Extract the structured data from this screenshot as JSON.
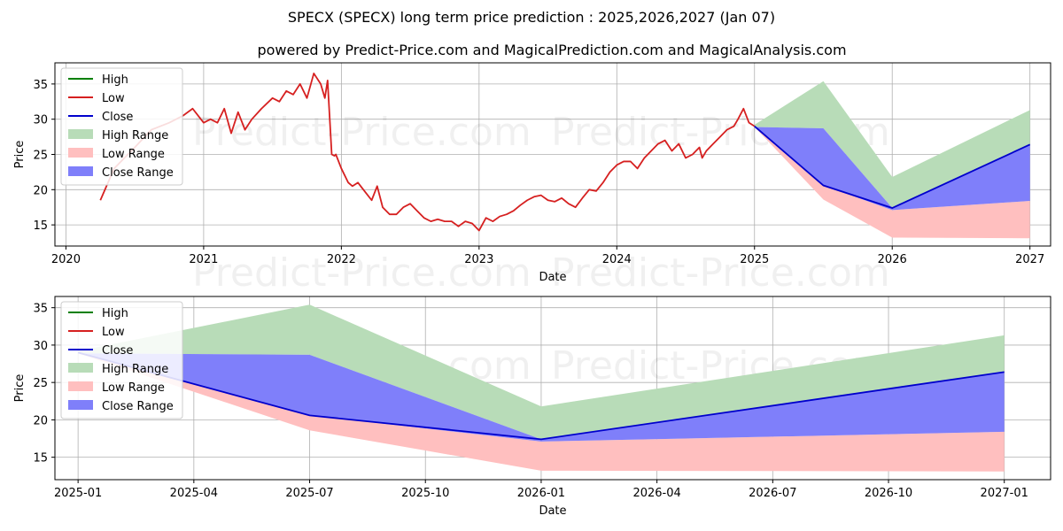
{
  "header": {
    "title": "SPECX (SPECX) long term price prediction : 2025,2026,2027 (Jan 07)",
    "subtitle": "powered by Predict-Price.com and MagicalPrediction.com and MagicalAnalysis.com"
  },
  "watermark": "Predict-Price.com",
  "colors": {
    "high": "#008000",
    "low": "#d62020",
    "close": "#0000cc",
    "high_range": "#b8dcb8",
    "low_range": "#ffbfbf",
    "close_range": "#7f7ffa",
    "grid": "#b0b0b0"
  },
  "chart_data": [
    {
      "type": "line",
      "xlabel": "Date",
      "ylabel": "Price",
      "grid": true,
      "legend_position": "top-left",
      "xlim": [
        2019.92,
        2027.15
      ],
      "ylim": [
        12,
        38
      ],
      "xticks": [
        {
          "v": 2020,
          "label": "2020"
        },
        {
          "v": 2021,
          "label": "2021"
        },
        {
          "v": 2022,
          "label": "2022"
        },
        {
          "v": 2023,
          "label": "2023"
        },
        {
          "v": 2024,
          "label": "2024"
        },
        {
          "v": 2025,
          "label": "2025"
        },
        {
          "v": 2026,
          "label": "2026"
        },
        {
          "v": 2027,
          "label": "2027"
        }
      ],
      "yticks": [
        15,
        20,
        25,
        30,
        35
      ],
      "legend": [
        "High",
        "Low",
        "Close",
        "High Range",
        "Low Range",
        "Close Range"
      ],
      "history": {
        "name": "Low",
        "x": [
          2020.25,
          2020.35,
          2020.5,
          2020.62,
          2020.75,
          2020.85,
          2020.92,
          2021.0,
          2021.05,
          2021.1,
          2021.15,
          2021.2,
          2021.25,
          2021.3,
          2021.35,
          2021.42,
          2021.5,
          2021.55,
          2021.6,
          2021.65,
          2021.7,
          2021.75,
          2021.8,
          2021.85,
          2021.88,
          2021.9,
          2021.93,
          2021.95,
          2021.96,
          2022.0,
          2022.05,
          2022.08,
          2022.12,
          2022.18,
          2022.22,
          2022.26,
          2022.3,
          2022.35,
          2022.4,
          2022.45,
          2022.5,
          2022.55,
          2022.6,
          2022.65,
          2022.7,
          2022.75,
          2022.8,
          2022.85,
          2022.9,
          2022.95,
          2023.0,
          2023.05,
          2023.1,
          2023.15,
          2023.2,
          2023.25,
          2023.3,
          2023.35,
          2023.4,
          2023.45,
          2023.5,
          2023.55,
          2023.6,
          2023.65,
          2023.7,
          2023.75,
          2023.8,
          2023.85,
          2023.9,
          2023.95,
          2024.0,
          2024.05,
          2024.1,
          2024.15,
          2024.2,
          2024.25,
          2024.3,
          2024.35,
          2024.4,
          2024.45,
          2024.5,
          2024.55,
          2024.6,
          2024.62,
          2024.65,
          2024.7,
          2024.75,
          2024.8,
          2024.85,
          2024.88,
          2024.92,
          2024.96,
          2025.0
        ],
        "y": [
          18.5,
          23,
          26,
          28.5,
          29.5,
          30.5,
          31.5,
          29.5,
          30,
          29.5,
          31.5,
          28,
          31,
          28.5,
          30,
          31.5,
          33,
          32.5,
          34,
          33.5,
          35,
          33,
          36.5,
          35,
          33,
          35.5,
          25,
          24.8,
          25,
          23,
          21,
          20.5,
          21,
          19.5,
          18.5,
          20.5,
          17.5,
          16.5,
          16.5,
          17.5,
          18,
          17,
          16,
          15.5,
          15.8,
          15.5,
          15.5,
          14.8,
          15.5,
          15.2,
          14.2,
          16,
          15.5,
          16.2,
          16.5,
          17,
          17.8,
          18.5,
          19,
          19.2,
          18.5,
          18.3,
          18.8,
          18,
          17.5,
          18.8,
          20,
          19.8,
          21,
          22.5,
          23.5,
          24,
          24,
          23,
          24.5,
          25.5,
          26.5,
          27,
          25.5,
          26.5,
          24.5,
          25,
          26,
          24.5,
          25.5,
          26.5,
          27.5,
          28.5,
          29,
          30,
          31.5,
          29.5,
          29
        ]
      },
      "forecast": {
        "x": [
          2025.0,
          2025.5,
          2026.0,
          2027.0
        ],
        "close": [
          29,
          20.6,
          17.4,
          26.4
        ],
        "high_range_top": [
          29.2,
          35.4,
          21.8,
          31.3
        ],
        "close_range_top": [
          28.9,
          28.7,
          17.4,
          26.4
        ],
        "close_range_bottom": [
          28.9,
          20.6,
          17.1,
          18.4
        ],
        "low_range_bottom": [
          28.9,
          18.6,
          13.2,
          13.1
        ]
      }
    },
    {
      "type": "line",
      "xlabel": "Date",
      "ylabel": "Price",
      "grid": true,
      "legend_position": "top-left",
      "xlim": [
        2024.95,
        2027.1
      ],
      "ylim": [
        12,
        36.5
      ],
      "xticks": [
        {
          "v": 2025.0,
          "label": "2025-01"
        },
        {
          "v": 2025.25,
          "label": "2025-04"
        },
        {
          "v": 2025.5,
          "label": "2025-07"
        },
        {
          "v": 2025.75,
          "label": "2025-10"
        },
        {
          "v": 2026.0,
          "label": "2026-01"
        },
        {
          "v": 2026.25,
          "label": "2026-04"
        },
        {
          "v": 2026.5,
          "label": "2026-07"
        },
        {
          "v": 2026.75,
          "label": "2026-10"
        },
        {
          "v": 2027.0,
          "label": "2027-01"
        }
      ],
      "yticks": [
        15,
        20,
        25,
        30,
        35
      ],
      "legend": [
        "High",
        "Low",
        "Close",
        "High Range",
        "Low Range",
        "Close Range"
      ],
      "forecast": {
        "x": [
          2025.0,
          2025.5,
          2026.0,
          2027.0
        ],
        "close": [
          29,
          20.6,
          17.4,
          26.4
        ],
        "high_range_top": [
          29.2,
          35.4,
          21.8,
          31.3
        ],
        "close_range_top": [
          28.9,
          28.7,
          17.4,
          26.4
        ],
        "close_range_bottom": [
          28.9,
          20.6,
          17.1,
          18.4
        ],
        "low_range_bottom": [
          28.9,
          18.6,
          13.2,
          13.1
        ]
      }
    }
  ]
}
